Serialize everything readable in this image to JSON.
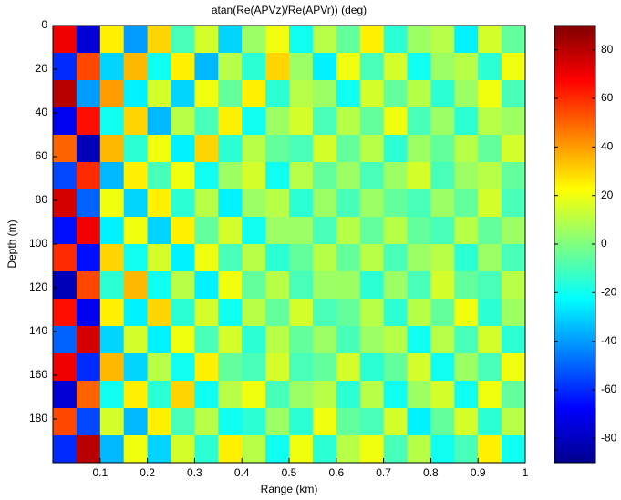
{
  "chart_data": {
    "type": "heatmap",
    "title": "atan(Re(APVz)/Re(APVr)) (deg)",
    "x_label": "Range (km)",
    "y_label": "Depth (m)",
    "xlim": [
      0,
      1
    ],
    "ylim": [
      0,
      200
    ],
    "y_reversed": true,
    "xticks": [
      0.1,
      0.2,
      0.3,
      0.4,
      0.5,
      0.6,
      0.7,
      0.8,
      0.9,
      1
    ],
    "yticks": [
      0,
      20,
      40,
      60,
      80,
      100,
      120,
      140,
      160,
      180
    ],
    "colormap": "jet",
    "clim": [
      -90,
      90
    ],
    "cticks": [
      -80,
      -60,
      -40,
      -20,
      0,
      20,
      40,
      60,
      80
    ],
    "z": [
      [
        70,
        -75,
        25,
        -40,
        30,
        -10,
        15,
        -30,
        5,
        20,
        -20,
        10,
        -5,
        25,
        -15,
        5,
        10,
        -25,
        15,
        -5
      ],
      [
        -60,
        55,
        -30,
        35,
        -20,
        25,
        -35,
        10,
        -15,
        30,
        5,
        -25,
        20,
        -10,
        15,
        -20,
        5,
        10,
        -15,
        20
      ],
      [
        80,
        -40,
        40,
        -25,
        15,
        -30,
        20,
        -5,
        25,
        -15,
        10,
        5,
        -20,
        15,
        -5,
        10,
        -15,
        5,
        20,
        -10
      ],
      [
        -70,
        65,
        -20,
        30,
        -35,
        10,
        -10,
        25,
        -20,
        5,
        15,
        -10,
        10,
        -5,
        20,
        -10,
        5,
        -15,
        10,
        5
      ],
      [
        50,
        -80,
        35,
        -15,
        20,
        -25,
        30,
        -15,
        10,
        -5,
        -10,
        15,
        -5,
        10,
        -15,
        5,
        -5,
        10,
        -5,
        15
      ],
      [
        -55,
        60,
        -35,
        25,
        -10,
        20,
        -20,
        5,
        15,
        -20,
        10,
        -5,
        5,
        -10,
        5,
        15,
        -10,
        5,
        10,
        -5
      ],
      [
        75,
        -50,
        20,
        -30,
        25,
        -15,
        10,
        -25,
        5,
        10,
        -15,
        5,
        -10,
        5,
        -5,
        -10,
        5,
        -5,
        15,
        -10
      ],
      [
        -65,
        70,
        -25,
        20,
        -30,
        25,
        -5,
        15,
        -20,
        5,
        5,
        -10,
        10,
        -5,
        10,
        -5,
        -10,
        10,
        -5,
        5
      ],
      [
        60,
        -65,
        30,
        -20,
        15,
        -25,
        20,
        -10,
        10,
        -15,
        -5,
        10,
        -5,
        10,
        -10,
        5,
        10,
        -15,
        5,
        -10
      ],
      [
        -80,
        55,
        -15,
        35,
        -20,
        10,
        -25,
        20,
        -5,
        10,
        -10,
        5,
        5,
        -15,
        5,
        -10,
        15,
        -5,
        -10,
        10
      ],
      [
        65,
        -70,
        25,
        -25,
        30,
        -15,
        15,
        -20,
        10,
        -5,
        15,
        -10,
        -5,
        10,
        -15,
        10,
        -5,
        20,
        -15,
        5
      ],
      [
        -50,
        75,
        -30,
        15,
        -25,
        20,
        -10,
        15,
        -15,
        10,
        -5,
        5,
        -10,
        5,
        10,
        -20,
        10,
        -10,
        15,
        -15
      ],
      [
        70,
        -60,
        35,
        -30,
        10,
        -20,
        25,
        -5,
        -10,
        15,
        -10,
        -5,
        15,
        -15,
        -5,
        15,
        -20,
        5,
        -10,
        20
      ],
      [
        -75,
        50,
        -20,
        25,
        -15,
        30,
        -20,
        10,
        20,
        -10,
        5,
        10,
        -15,
        10,
        -20,
        5,
        15,
        -20,
        20,
        -5
      ],
      [
        55,
        -55,
        15,
        -35,
        25,
        -10,
        10,
        -20,
        -15,
        5,
        -15,
        20,
        -5,
        -10,
        15,
        -25,
        -5,
        15,
        -15,
        10
      ],
      [
        -60,
        80,
        -35,
        20,
        -30,
        15,
        -15,
        25,
        10,
        -20,
        20,
        -15,
        10,
        20,
        -10,
        10,
        -20,
        -10,
        25,
        -20
      ]
    ]
  }
}
